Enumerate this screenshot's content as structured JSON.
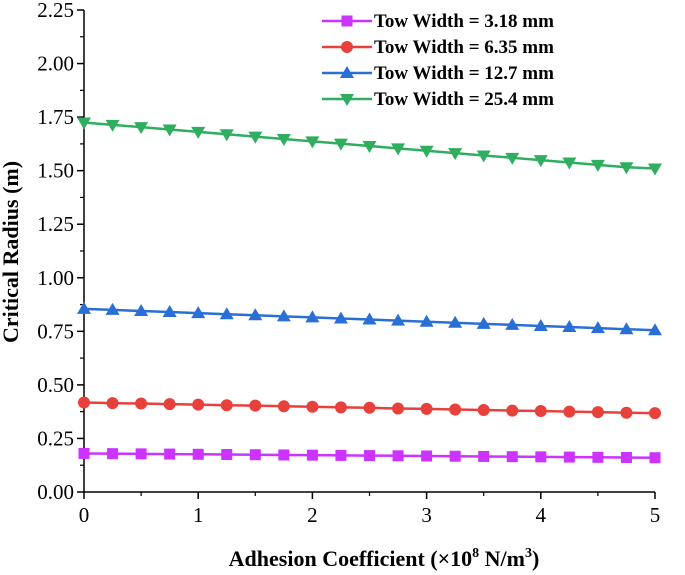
{
  "chart_data": {
    "type": "line",
    "xlabel": "Adhesion Coefficient (×10",
    "xlabel_sup1": "8",
    "xlabel_mid": " N/m",
    "xlabel_sup2": "3",
    "xlabel_end": ")",
    "ylabel": "Critical Radius (m)",
    "xlim": [
      0,
      5
    ],
    "ylim": [
      0,
      2.25
    ],
    "xticks": [
      "0",
      "1",
      "2",
      "3",
      "4",
      "5"
    ],
    "yticks": [
      "0.00",
      "0.25",
      "0.50",
      "0.75",
      "1.00",
      "1.25",
      "1.50",
      "1.75",
      "2.00",
      "2.25"
    ],
    "grid": false,
    "legend_position": "top-right",
    "x": [
      0,
      0.25,
      0.5,
      0.75,
      1,
      1.25,
      1.5,
      1.75,
      2,
      2.25,
      2.5,
      2.75,
      3,
      3.25,
      3.5,
      3.75,
      4,
      4.25,
      4.5,
      4.75,
      5
    ],
    "series": [
      {
        "name": "Tow Width = 3.18 mm",
        "color": "#cc33ff",
        "marker": "square",
        "values": [
          0.18,
          0.179,
          0.178,
          0.177,
          0.176,
          0.175,
          0.174,
          0.173,
          0.172,
          0.171,
          0.17,
          0.169,
          0.168,
          0.167,
          0.166,
          0.165,
          0.164,
          0.163,
          0.162,
          0.161,
          0.16
        ]
      },
      {
        "name": "Tow Width = 6.35 mm",
        "color": "#e8403a",
        "marker": "circle",
        "values": [
          0.418,
          0.415,
          0.413,
          0.41,
          0.408,
          0.405,
          0.403,
          0.4,
          0.398,
          0.395,
          0.393,
          0.39,
          0.388,
          0.385,
          0.383,
          0.38,
          0.378,
          0.375,
          0.373,
          0.37,
          0.368
        ]
      },
      {
        "name": "Tow Width = 12.7 mm",
        "color": "#2a6fd6",
        "marker": "triangle-up",
        "values": [
          0.855,
          0.85,
          0.845,
          0.84,
          0.835,
          0.83,
          0.825,
          0.82,
          0.815,
          0.81,
          0.805,
          0.8,
          0.795,
          0.79,
          0.785,
          0.78,
          0.775,
          0.77,
          0.765,
          0.76,
          0.755
        ]
      },
      {
        "name": "Tow Width = 25.4 mm",
        "color": "#2fae60",
        "marker": "triangle-down",
        "values": [
          1.725,
          1.714,
          1.703,
          1.692,
          1.681,
          1.67,
          1.659,
          1.648,
          1.637,
          1.626,
          1.615,
          1.604,
          1.593,
          1.582,
          1.571,
          1.56,
          1.549,
          1.538,
          1.527,
          1.516,
          1.51
        ]
      }
    ]
  }
}
